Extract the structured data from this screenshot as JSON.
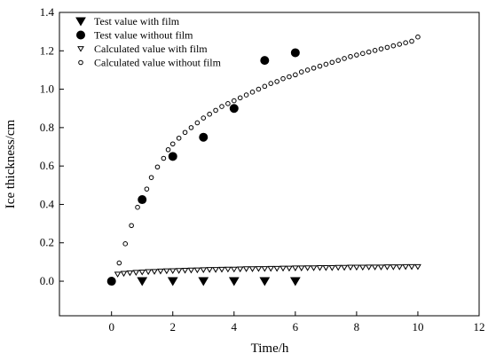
{
  "chart_data": {
    "type": "scatter",
    "xlabel": "Time/h",
    "ylabel": "Ice thickness/cm",
    "xlim": [
      -1.7,
      12
    ],
    "ylim": [
      -0.18,
      1.4
    ],
    "xticks": [
      "0",
      "2",
      "4",
      "6",
      "8",
      "10",
      "12"
    ],
    "yticks": [
      "0.0",
      "0.2",
      "0.4",
      "0.6",
      "0.8",
      "1.0",
      "1.2",
      "1.4"
    ],
    "legend_position": "top-left",
    "grid": false,
    "series": [
      {
        "name": "Test value with film",
        "marker": "filled-triangle-down",
        "color": "#000000",
        "x": [
          1,
          2,
          3,
          4,
          5,
          6
        ],
        "y": [
          0.0,
          0.0,
          0.0,
          0.0,
          0.0,
          0.0
        ]
      },
      {
        "name": "Test value without film",
        "marker": "filled-circle",
        "color": "#000000",
        "x": [
          0,
          1,
          2,
          3,
          4,
          5,
          6
        ],
        "y": [
          0.0,
          0.425,
          0.65,
          0.75,
          0.9,
          1.15,
          1.19
        ]
      },
      {
        "name": "Calculated value with film",
        "marker": "open-triangle-down",
        "color": "#000000",
        "x": [
          0.2,
          0.4,
          0.6,
          0.8,
          1.0,
          1.2,
          1.4,
          1.6,
          1.8,
          2.0,
          2.2,
          2.4,
          2.6,
          2.8,
          3.0,
          3.2,
          3.4,
          3.6,
          3.8,
          4.0,
          4.2,
          4.4,
          4.6,
          4.8,
          5.0,
          5.2,
          5.4,
          5.6,
          5.8,
          6.0,
          6.2,
          6.4,
          6.6,
          6.8,
          7.0,
          7.2,
          7.4,
          7.6,
          7.8,
          8.0,
          8.2,
          8.4,
          8.6,
          8.8,
          9.0,
          9.2,
          9.4,
          9.6,
          9.8,
          10.0
        ],
        "y": [
          0.036,
          0.04,
          0.043,
          0.045,
          0.047,
          0.049,
          0.05,
          0.052,
          0.053,
          0.054,
          0.055,
          0.056,
          0.057,
          0.058,
          0.059,
          0.06,
          0.06,
          0.061,
          0.062,
          0.062,
          0.063,
          0.064,
          0.064,
          0.065,
          0.065,
          0.066,
          0.066,
          0.067,
          0.067,
          0.068,
          0.068,
          0.069,
          0.069,
          0.07,
          0.07,
          0.07,
          0.071,
          0.071,
          0.072,
          0.072,
          0.072,
          0.073,
          0.073,
          0.073,
          0.074,
          0.074,
          0.074,
          0.075,
          0.075,
          0.075
        ]
      },
      {
        "name": "Calculated value without film",
        "marker": "open-circle",
        "color": "#000000",
        "x": [
          0.25,
          0.45,
          0.65,
          0.85,
          1.0,
          1.15,
          1.3,
          1.5,
          1.7,
          1.85,
          2.0,
          2.2,
          2.4,
          2.6,
          2.8,
          3.0,
          3.2,
          3.4,
          3.6,
          3.8,
          4.0,
          4.2,
          4.4,
          4.6,
          4.8,
          5.0,
          5.2,
          5.4,
          5.6,
          5.8,
          6.0,
          6.2,
          6.4,
          6.6,
          6.8,
          7.0,
          7.2,
          7.4,
          7.6,
          7.8,
          8.0,
          8.2,
          8.4,
          8.6,
          8.8,
          9.0,
          9.2,
          9.4,
          9.6,
          9.8,
          10.0
        ],
        "y": [
          0.095,
          0.195,
          0.29,
          0.385,
          0.425,
          0.48,
          0.54,
          0.595,
          0.64,
          0.685,
          0.715,
          0.745,
          0.775,
          0.8,
          0.825,
          0.85,
          0.87,
          0.89,
          0.91,
          0.925,
          0.94,
          0.955,
          0.97,
          0.985,
          1.0,
          1.015,
          1.03,
          1.04,
          1.055,
          1.065,
          1.075,
          1.09,
          1.1,
          1.11,
          1.12,
          1.13,
          1.14,
          1.15,
          1.16,
          1.17,
          1.178,
          1.186,
          1.194,
          1.202,
          1.21,
          1.218,
          1.226,
          1.234,
          1.242,
          1.25,
          1.272
        ]
      }
    ]
  }
}
